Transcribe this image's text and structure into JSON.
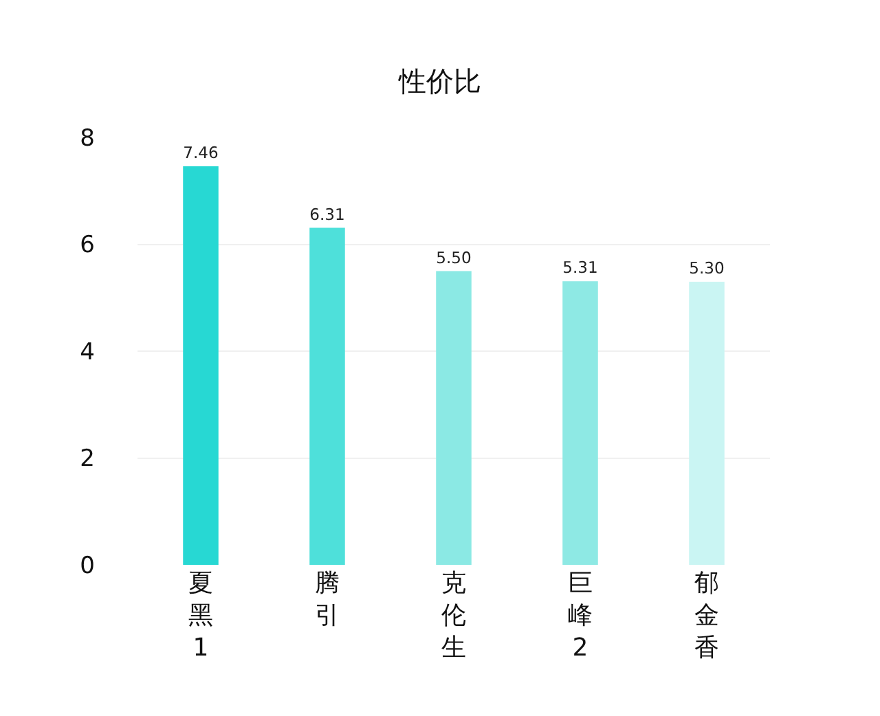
{
  "chart_data": {
    "type": "bar",
    "title": "性价比",
    "categories": [
      "夏黑1",
      "腾引",
      "克伦生",
      "巨峰2",
      "郁金香"
    ],
    "values": [
      7.46,
      6.31,
      5.5,
      5.31,
      5.3
    ],
    "value_labels": [
      "7.46",
      "6.31",
      "5.50",
      "5.31",
      "5.30"
    ],
    "colors": [
      "#27d8d3",
      "#4ee0da",
      "#8be9e4",
      "#8ee9e4",
      "#caf5f3"
    ],
    "ylim": [
      0,
      8
    ],
    "yticks": [
      0,
      2,
      4,
      6,
      8
    ],
    "grid": "y",
    "legend": false
  }
}
